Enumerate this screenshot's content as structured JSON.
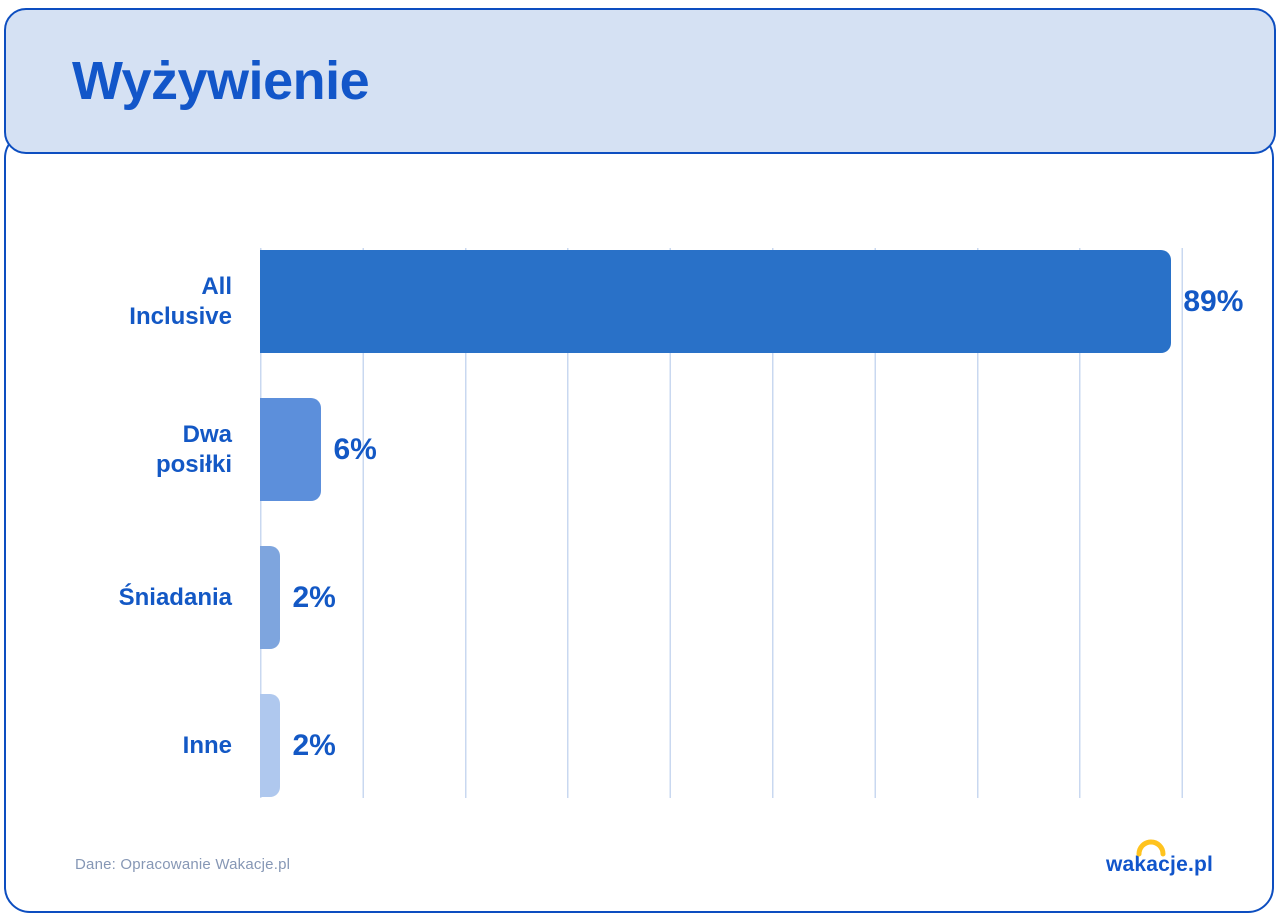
{
  "header": {
    "title": "Wyżywienie"
  },
  "chart_data": {
    "type": "bar",
    "orientation": "horizontal",
    "title": "Wyżywienie",
    "categories": [
      "All Inclusive",
      "Dwa posiłki",
      "Śniadania",
      "Inne"
    ],
    "display_labels": [
      "All\nInclusive",
      "Dwa\nposiłki",
      "Śniadania",
      "Inne"
    ],
    "values": [
      89,
      6,
      2,
      2
    ],
    "value_labels": [
      "89%",
      "6%",
      "2%",
      "2%"
    ],
    "xlim": [
      0,
      100
    ],
    "gridline_step_percent": 10,
    "grid": "vertical-lines-only",
    "legend": "none",
    "bar_colors": [
      "#2971c8",
      "#5c8fdb",
      "#7ea5de",
      "#afc8ee"
    ]
  },
  "footer": {
    "source": "Dane: Opracowanie Wakacje.pl",
    "logo_text": "wakacje.pl"
  },
  "colors": {
    "accent_blue": "#1358c5",
    "border_blue": "#0d4ec0",
    "header_bg": "#d5e1f3",
    "gridline": "#c9d8f0",
    "footer_text": "#8697b5",
    "logo_sun_yellow": "#ffc31e"
  }
}
